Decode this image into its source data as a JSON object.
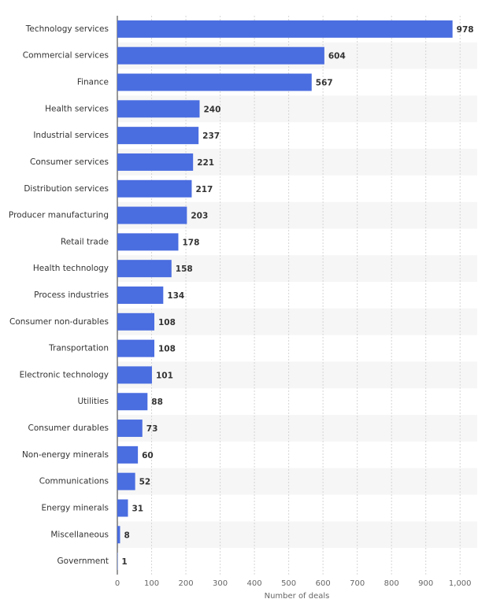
{
  "chart_data": {
    "type": "bar",
    "orientation": "horizontal",
    "x_label": "Number of deals",
    "categories": [
      "Technology services",
      "Commercial services",
      "Finance",
      "Health services",
      "Industrial services",
      "Consumer services",
      "Distribution services",
      "Producer manufacturing",
      "Retail trade",
      "Health technology",
      "Process industries",
      "Consumer non-durables",
      "Transportation",
      "Electronic technology",
      "Utilities",
      "Consumer durables",
      "Non-energy minerals",
      "Communications",
      "Energy minerals",
      "Miscellaneous",
      "Government"
    ],
    "values": [
      978,
      604,
      567,
      240,
      237,
      221,
      217,
      203,
      178,
      158,
      134,
      108,
      108,
      101,
      88,
      73,
      60,
      52,
      31,
      8,
      1
    ],
    "color": "#4a6de0",
    "xlim": [
      0,
      1050
    ],
    "xticks": [
      0,
      100,
      200,
      300,
      400,
      500,
      600,
      700,
      800,
      900,
      {
        "value": 1000,
        "label": "1,000"
      }
    ],
    "grid": true
  }
}
